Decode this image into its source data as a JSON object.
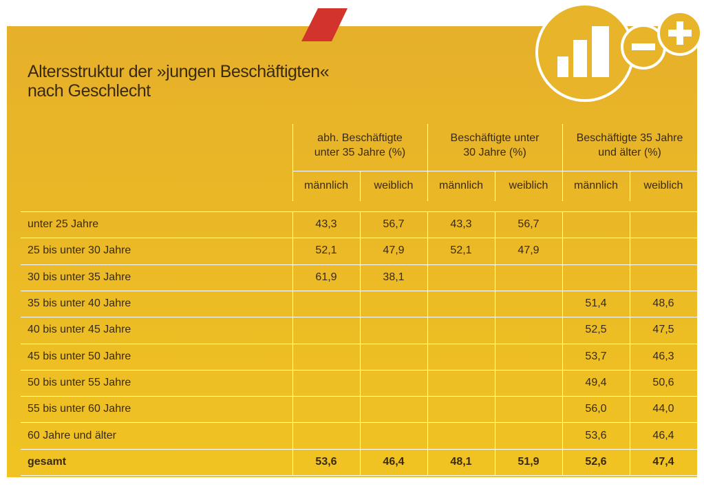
{
  "title": [
    "Altersstruktur der »jungen Beschäftigten«",
    "nach Geschlecht"
  ],
  "table": {
    "groups": [
      [
        "abh. Beschäftigte",
        "unter 35 Jahre (%)"
      ],
      [
        "Beschäftigte unter",
        "30 Jahre (%)"
      ],
      [
        "Beschäftigte 35 Jahre",
        "und älter (%)"
      ]
    ],
    "subheaders": [
      "männlich",
      "weiblich",
      "männlich",
      "weiblich",
      "männlich",
      "weiblich"
    ],
    "rows": [
      {
        "label": "unter 25 Jahre",
        "cells": [
          "43,3",
          "56,7",
          "43,3",
          "56,7",
          null,
          null
        ]
      },
      {
        "label": "25 bis unter 30 Jahre",
        "cells": [
          "52,1",
          "47,9",
          "52,1",
          "47,9",
          null,
          null
        ]
      },
      {
        "label": "30 bis unter 35 Jahre",
        "cells": [
          "61,9",
          "38,1",
          null,
          null,
          null,
          null
        ]
      },
      {
        "label": "35 bis unter 40 Jahre",
        "cells": [
          null,
          null,
          null,
          null,
          "51,4",
          "48,6"
        ]
      },
      {
        "label": "40 bis unter 45 Jahre",
        "cells": [
          null,
          null,
          null,
          null,
          "52,5",
          "47,5"
        ]
      },
      {
        "label": "45 bis unter 50 Jahre",
        "cells": [
          null,
          null,
          null,
          null,
          "53,7",
          "46,3"
        ]
      },
      {
        "label": "50 bis unter 55 Jahre",
        "cells": [
          null,
          null,
          null,
          null,
          "49,4",
          "50,6"
        ]
      },
      {
        "label": "55 bis unter 60 Jahre",
        "cells": [
          null,
          null,
          null,
          null,
          "56,0",
          "44,0"
        ]
      },
      {
        "label": "60 Jahre und älter",
        "cells": [
          null,
          null,
          null,
          null,
          "53,6",
          "46,4"
        ]
      },
      {
        "label": "gesamt",
        "cells": [
          "53,6",
          "46,4",
          "48,1",
          "51,9",
          "52,6",
          "47,4"
        ]
      }
    ]
  }
}
